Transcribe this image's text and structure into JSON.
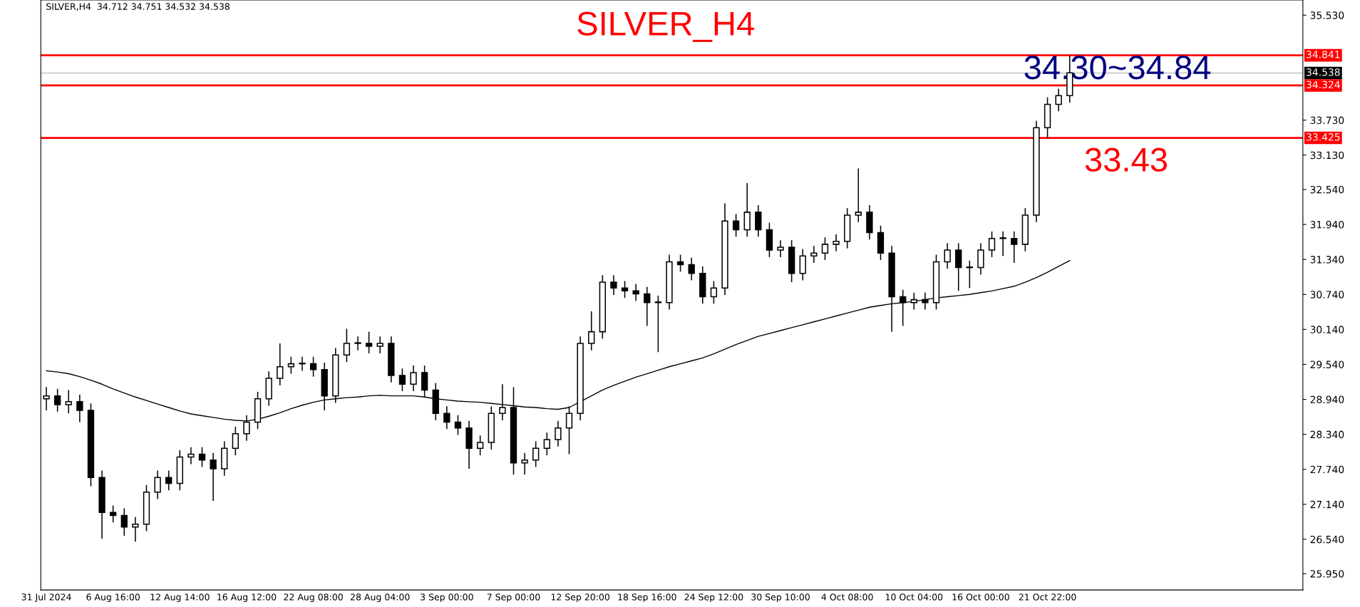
{
  "chart_data": {
    "type": "candlestick",
    "title": "SILVER_H4",
    "subtitle": "SILVER,H4  34.712 34.751 34.532 34.538",
    "categories": [
      "31 Jul 2024",
      null,
      null,
      null,
      null,
      null,
      "6 Aug 16:00",
      null,
      null,
      null,
      null,
      null,
      "12 Aug 14:00",
      null,
      null,
      null,
      null,
      null,
      "16 Aug 12:00",
      null,
      null,
      null,
      null,
      null,
      "22 Aug 08:00",
      null,
      null,
      null,
      null,
      null,
      "28 Aug 04:00",
      null,
      null,
      null,
      null,
      null,
      "3 Sep 00:00",
      null,
      null,
      null,
      null,
      null,
      "7 Sep 00:00",
      null,
      null,
      null,
      null,
      null,
      "12 Sep 20:00",
      null,
      null,
      null,
      null,
      null,
      "18 Sep 16:00",
      null,
      null,
      null,
      null,
      null,
      "24 Sep 12:00",
      null,
      null,
      null,
      null,
      null,
      "30 Sep 10:00",
      null,
      null,
      null,
      null,
      null,
      "4 Oct 08:00",
      null,
      null,
      null,
      null,
      null,
      "10 Oct 04:00",
      null,
      null,
      null,
      null,
      null,
      "16 Oct 00:00",
      null,
      null,
      null,
      null,
      null,
      "21 Oct 22:00",
      null,
      null
    ],
    "ohlc": [
      [
        28.95,
        29.15,
        28.75,
        29.0
      ],
      [
        29.0,
        29.12,
        28.73,
        28.85
      ],
      [
        28.85,
        29.1,
        28.7,
        28.9
      ],
      [
        28.9,
        29.02,
        28.55,
        28.75
      ],
      [
        28.75,
        28.87,
        27.45,
        27.6
      ],
      [
        27.6,
        27.72,
        26.55,
        27.0
      ],
      [
        27.0,
        27.12,
        26.83,
        26.95
      ],
      [
        26.95,
        27.07,
        26.6,
        26.75
      ],
      [
        26.75,
        26.92,
        26.5,
        26.8
      ],
      [
        26.8,
        27.47,
        26.68,
        27.35
      ],
      [
        27.35,
        27.72,
        27.23,
        27.6
      ],
      [
        27.6,
        27.72,
        27.38,
        27.5
      ],
      [
        27.5,
        28.07,
        27.38,
        27.95
      ],
      [
        27.95,
        28.12,
        27.83,
        28.0
      ],
      [
        28.0,
        28.12,
        27.78,
        27.9
      ],
      [
        27.9,
        28.02,
        27.2,
        27.75
      ],
      [
        27.75,
        28.22,
        27.63,
        28.1
      ],
      [
        28.1,
        28.47,
        27.98,
        28.35
      ],
      [
        28.35,
        28.67,
        28.23,
        28.55
      ],
      [
        28.55,
        29.07,
        28.43,
        28.95
      ],
      [
        28.95,
        29.42,
        28.83,
        29.3
      ],
      [
        29.3,
        29.9,
        29.18,
        29.5
      ],
      [
        29.5,
        29.67,
        29.38,
        29.55
      ],
      [
        29.55,
        29.67,
        29.43,
        29.55
      ],
      [
        29.55,
        29.67,
        29.33,
        29.45
      ],
      [
        29.45,
        29.57,
        28.75,
        29.0
      ],
      [
        29.0,
        29.82,
        28.88,
        29.7
      ],
      [
        29.7,
        30.15,
        29.58,
        29.9
      ],
      [
        29.9,
        30.02,
        29.78,
        29.9
      ],
      [
        29.9,
        30.1,
        29.73,
        29.85
      ],
      [
        29.85,
        30.02,
        29.73,
        29.9
      ],
      [
        29.9,
        30.02,
        29.23,
        29.35
      ],
      [
        29.35,
        29.47,
        29.08,
        29.2
      ],
      [
        29.2,
        29.52,
        29.08,
        29.4
      ],
      [
        29.4,
        29.52,
        28.98,
        29.1
      ],
      [
        29.1,
        29.22,
        28.58,
        28.7
      ],
      [
        28.7,
        28.82,
        28.43,
        28.55
      ],
      [
        28.55,
        28.67,
        28.33,
        28.45
      ],
      [
        28.45,
        28.57,
        27.75,
        28.1
      ],
      [
        28.1,
        28.32,
        27.98,
        28.2
      ],
      [
        28.2,
        28.82,
        28.08,
        28.7
      ],
      [
        28.7,
        29.2,
        28.58,
        28.8
      ],
      [
        28.8,
        29.15,
        27.65,
        27.85
      ],
      [
        27.85,
        28.02,
        27.65,
        27.9
      ],
      [
        27.9,
        28.22,
        27.78,
        28.1
      ],
      [
        28.1,
        28.37,
        27.98,
        28.25
      ],
      [
        28.25,
        28.57,
        28.13,
        28.45
      ],
      [
        28.45,
        28.82,
        28.0,
        28.7
      ],
      [
        28.7,
        30.02,
        28.58,
        29.9
      ],
      [
        29.9,
        30.45,
        29.78,
        30.1
      ],
      [
        30.1,
        31.07,
        29.98,
        30.95
      ],
      [
        30.95,
        31.07,
        30.73,
        30.85
      ],
      [
        30.85,
        30.97,
        30.68,
        30.8
      ],
      [
        30.8,
        30.92,
        30.63,
        30.75
      ],
      [
        30.75,
        30.87,
        30.2,
        30.6
      ],
      [
        30.6,
        30.72,
        29.75,
        30.6
      ],
      [
        30.6,
        31.42,
        30.48,
        31.3
      ],
      [
        31.3,
        31.42,
        31.13,
        31.25
      ],
      [
        31.25,
        31.37,
        30.98,
        31.1
      ],
      [
        31.1,
        31.22,
        30.58,
        30.7
      ],
      [
        30.7,
        30.97,
        30.58,
        30.85
      ],
      [
        30.85,
        32.3,
        30.73,
        32.0
      ],
      [
        32.0,
        32.12,
        31.73,
        31.85
      ],
      [
        31.85,
        32.65,
        31.73,
        32.15
      ],
      [
        32.15,
        32.27,
        31.73,
        31.85
      ],
      [
        31.85,
        31.97,
        31.38,
        31.5
      ],
      [
        31.5,
        31.67,
        31.38,
        31.55
      ],
      [
        31.55,
        31.67,
        30.95,
        31.1
      ],
      [
        31.1,
        31.52,
        30.98,
        31.4
      ],
      [
        31.4,
        31.57,
        31.28,
        31.45
      ],
      [
        31.45,
        31.72,
        31.33,
        31.6
      ],
      [
        31.6,
        31.77,
        31.48,
        31.65
      ],
      [
        31.65,
        32.22,
        31.53,
        32.1
      ],
      [
        32.1,
        32.9,
        31.98,
        32.15
      ],
      [
        32.15,
        32.27,
        31.68,
        31.8
      ],
      [
        31.8,
        31.92,
        31.33,
        31.45
      ],
      [
        31.45,
        31.57,
        30.1,
        30.7
      ],
      [
        30.7,
        30.82,
        30.2,
        30.6
      ],
      [
        30.6,
        30.77,
        30.48,
        30.65
      ],
      [
        30.65,
        30.77,
        30.48,
        30.6
      ],
      [
        30.6,
        31.42,
        30.48,
        31.3
      ],
      [
        31.3,
        31.62,
        31.18,
        31.5
      ],
      [
        31.5,
        31.62,
        30.8,
        31.2
      ],
      [
        31.2,
        31.32,
        30.85,
        31.2
      ],
      [
        31.2,
        31.62,
        31.08,
        31.5
      ],
      [
        31.5,
        31.82,
        31.38,
        31.7
      ],
      [
        31.7,
        31.82,
        31.4,
        31.7
      ],
      [
        31.7,
        31.82,
        31.28,
        31.6
      ],
      [
        31.6,
        32.22,
        31.48,
        32.1
      ],
      [
        32.1,
        33.72,
        31.98,
        33.6
      ],
      [
        33.6,
        34.12,
        33.42,
        34.0
      ],
      [
        34.0,
        34.27,
        33.88,
        34.15
      ],
      [
        34.15,
        34.84,
        34.03,
        34.54
      ]
    ],
    "series": [
      {
        "type": "line",
        "color": "#000000",
        "values": [
          29.43,
          29.41,
          29.38,
          29.33,
          29.27,
          29.2,
          29.12,
          29.05,
          28.98,
          28.92,
          28.86,
          28.8,
          28.74,
          28.69,
          28.66,
          28.63,
          28.6,
          28.58,
          28.57,
          28.6,
          28.65,
          28.71,
          28.78,
          28.84,
          28.89,
          28.93,
          28.95,
          28.97,
          28.98,
          29.0,
          29.01,
          29.0,
          29.0,
          29.0,
          28.98,
          28.95,
          28.93,
          28.91,
          28.9,
          28.89,
          28.87,
          28.85,
          28.83,
          28.81,
          28.8,
          28.78,
          28.77,
          28.8,
          28.9,
          29.0,
          29.1,
          29.18,
          29.25,
          29.32,
          29.38,
          29.44,
          29.5,
          29.55,
          29.6,
          29.65,
          29.72,
          29.8,
          29.88,
          29.95,
          30.02,
          30.07,
          30.12,
          30.17,
          30.22,
          30.27,
          30.32,
          30.37,
          30.42,
          30.47,
          30.52,
          30.55,
          30.58,
          30.6,
          30.62,
          30.65,
          30.68,
          30.7,
          30.72,
          30.74,
          30.77,
          30.8,
          30.84,
          30.88,
          30.95,
          31.03,
          31.12,
          31.22,
          31.32
        ]
      }
    ],
    "ylim": [
      25.67,
      35.79
    ],
    "yticks": [
      {
        "value": 25.95,
        "label": "25.950"
      },
      {
        "value": 26.54,
        "label": "26.540"
      },
      {
        "value": 27.14,
        "label": "27.140"
      },
      {
        "value": 27.74,
        "label": "27.740"
      },
      {
        "value": 28.34,
        "label": "28.340"
      },
      {
        "value": 28.94,
        "label": "28.940"
      },
      {
        "value": 29.54,
        "label": "29.540"
      },
      {
        "value": 30.14,
        "label": "30.140"
      },
      {
        "value": 30.74,
        "label": "30.740"
      },
      {
        "value": 31.34,
        "label": "31.340"
      },
      {
        "value": 31.94,
        "label": "31.940"
      },
      {
        "value": 32.54,
        "label": "32.540"
      },
      {
        "value": 33.13,
        "label": "33.130"
      },
      {
        "value": 33.73,
        "label": "33.730"
      },
      {
        "value": 35.53,
        "label": "35.530"
      }
    ],
    "ref_lines": [
      {
        "axis": "y",
        "value": 34.841,
        "label": "34.841",
        "color": "#ff0000"
      },
      {
        "axis": "y",
        "value": 34.538,
        "label": "34.538",
        "color": "#c0c0c0"
      },
      {
        "axis": "y",
        "value": 34.324,
        "label": "34.324",
        "color": "#ff0000"
      },
      {
        "axis": "y",
        "value": 33.425,
        "label": "33.425",
        "color": "#ff0000"
      }
    ],
    "annotations": [
      "34.30~34.84",
      "33.43"
    ],
    "grid": false
  }
}
